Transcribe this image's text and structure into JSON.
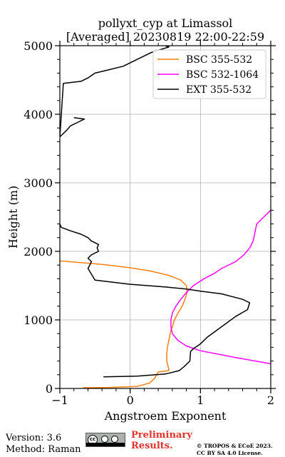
{
  "chart_data": {
    "type": "line",
    "title": "pollyxt_cyp at Limassol",
    "subtitle": "[Averaged] 20230819 22:00-22:59",
    "xlabel": "Angstroem Exponent",
    "ylabel": "Height (m)",
    "xlim": [
      -1,
      2
    ],
    "ylim": [
      0,
      5000
    ],
    "xticks": [
      "−1",
      "0",
      "1",
      "2"
    ],
    "xtick_values": [
      -1,
      0,
      1,
      2
    ],
    "yticks": [
      "0",
      "1000",
      "2000",
      "3000",
      "4000",
      "5000"
    ],
    "ytick_values": [
      0,
      1000,
      2000,
      3000,
      4000,
      5000
    ],
    "grid": true,
    "legend_position": "top-right",
    "series": [
      {
        "name": "BSC 355-532",
        "color": "#ff7f0e",
        "x": [
          -0.67,
          -0.3,
          0.1,
          0.28,
          0.35,
          0.4,
          0.55,
          0.55,
          0.52,
          0.52,
          0.53,
          0.55,
          0.58,
          0.6,
          0.63,
          0.68,
          0.74,
          0.78,
          0.81,
          0.8,
          0.72,
          0.55,
          0.3,
          0.0,
          -0.4,
          -1.0
        ],
        "y": [
          10,
          15,
          30,
          80,
          150,
          240,
          260,
          280,
          400,
          500,
          600,
          700,
          850,
          900,
          1000,
          1100,
          1200,
          1300,
          1400,
          1500,
          1580,
          1650,
          1710,
          1760,
          1810,
          1860
        ]
      },
      {
        "name": "BSC 532-1064",
        "color": "#ff00ff",
        "x": [
          2.0,
          1.5,
          1.0,
          0.8,
          0.68,
          0.6,
          0.58,
          0.58,
          0.6,
          0.65,
          0.72,
          0.8,
          0.9,
          1.05,
          1.2,
          1.3,
          1.5,
          1.62,
          1.7,
          1.75,
          1.78,
          1.8,
          1.9,
          2.0
        ],
        "y": [
          360,
          450,
          550,
          620,
          700,
          800,
          900,
          1000,
          1100,
          1200,
          1300,
          1400,
          1500,
          1600,
          1680,
          1750,
          1850,
          1950,
          2050,
          2150,
          2300,
          2400,
          2500,
          2600
        ]
      },
      {
        "name": "EXT 355-532",
        "color": "#000000",
        "x": [
          -0.38,
          0.1,
          0.5,
          0.7,
          0.78,
          0.85,
          0.86,
          0.9,
          1.0,
          1.1,
          1.3,
          1.5,
          1.67,
          1.7,
          1.6,
          1.3,
          1.0,
          0.8,
          0.5,
          0.0,
          -0.5,
          -0.6,
          -0.55,
          -0.6,
          -0.55,
          -0.45,
          -0.47,
          -0.45,
          -0.55,
          -0.6,
          -0.7,
          -0.85,
          -0.98,
          -1.0,
          -0.8,
          -0.65,
          -0.75,
          -0.85,
          -0.9,
          -0.95,
          -1.0,
          -0.95,
          -0.7,
          -0.6,
          -0.5,
          -0.3,
          -0.1,
          0.1,
          0.3,
          0.45,
          0.55,
          0.5,
          0.57
        ],
        "y": [
          170,
          180,
          210,
          260,
          330,
          400,
          540,
          580,
          650,
          750,
          900,
          1050,
          1150,
          1250,
          1300,
          1380,
          1420,
          1450,
          1480,
          1520,
          1580,
          1750,
          1850,
          1900,
          1950,
          2000,
          2050,
          2100,
          2150,
          2200,
          2250,
          2300,
          2350,
          2400,
          3950,
          3930,
          3880,
          3830,
          3770,
          3720,
          3670,
          4450,
          4480,
          4530,
          4600,
          4650,
          4700,
          4800,
          4900,
          4950,
          4980,
          5000,
          5000
        ]
      }
    ]
  },
  "footer": {
    "version": "Version: 3.6",
    "method": "Method: Raman",
    "license_badge": "cc",
    "preliminary_line1": "Preliminary",
    "preliminary_line2": "Results.",
    "copyright_line1": "© TROPOS & ECoE 2023.",
    "copyright_line2": "CC BY SA 4.0 License."
  }
}
